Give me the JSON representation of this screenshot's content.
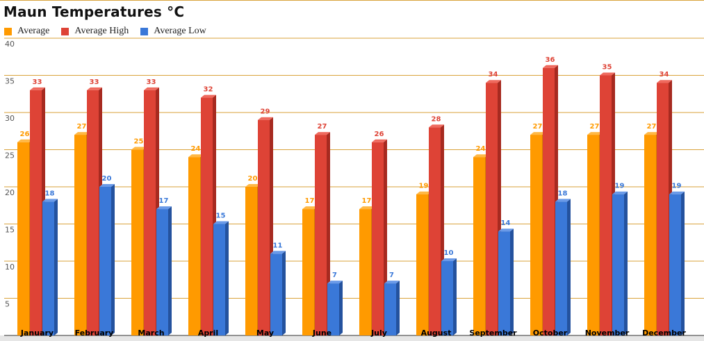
{
  "title": "Maun Temperatures °C",
  "colors": {
    "grid": "#d9a23a",
    "axis": "#333333"
  },
  "chart_data": {
    "type": "bar",
    "title": "Maun Temperatures °C",
    "xlabel": "",
    "ylabel": "",
    "ylim": [
      0,
      40
    ],
    "yticks": [
      5,
      10,
      15,
      20,
      25,
      30,
      35,
      40
    ],
    "grid": true,
    "legend_position": "top-left",
    "categories": [
      "January",
      "February",
      "March",
      "April",
      "May",
      "June",
      "July",
      "August",
      "September",
      "October",
      "November",
      "December"
    ],
    "series": [
      {
        "name": "Average",
        "color": "#ff9a00",
        "side": "#d67f00",
        "top": "#ffb845",
        "label_color": "#ff9a00",
        "values": [
          26,
          27,
          25,
          24,
          20,
          17,
          17,
          19,
          24,
          27,
          27,
          27
        ]
      },
      {
        "name": "Average High",
        "color": "#de4336",
        "side": "#a72a20",
        "top": "#ef6a5e",
        "label_color": "#de4336",
        "values": [
          33,
          33,
          33,
          32,
          29,
          27,
          26,
          28,
          34,
          36,
          35,
          34
        ]
      },
      {
        "name": "Average Low",
        "color": "#3a78d8",
        "side": "#24529e",
        "top": "#6a9ae8",
        "label_color": "#3a78d8",
        "values": [
          18,
          20,
          17,
          15,
          11,
          7,
          7,
          10,
          14,
          18,
          19,
          19
        ]
      }
    ]
  }
}
